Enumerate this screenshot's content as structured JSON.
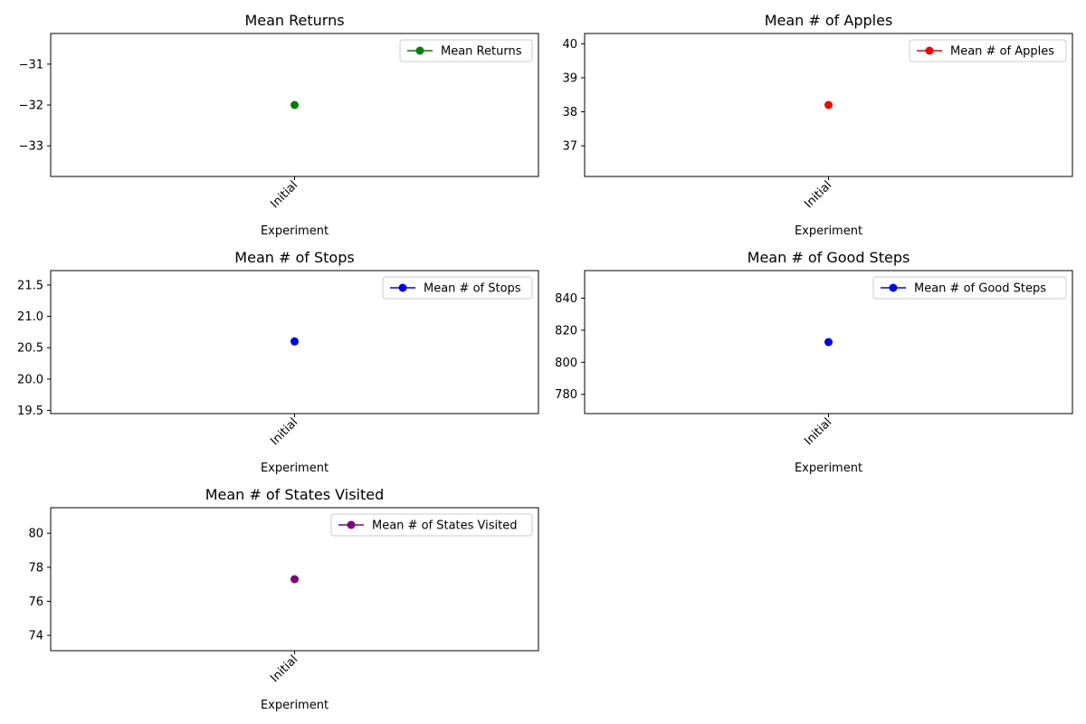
{
  "chart_data": [
    {
      "type": "line",
      "title": "Mean Returns",
      "xlabel": "Experiment",
      "ylabel": "",
      "categories": [
        "Initial"
      ],
      "series": [
        {
          "name": "Mean Returns",
          "values": [
            -32.0
          ],
          "color": "#008000"
        }
      ],
      "ylim": [
        -33.75,
        -30.25
      ],
      "yticks": [
        -33,
        -32,
        -31
      ],
      "ytick_labels": [
        "−33",
        "−32",
        "−31"
      ],
      "legend": "top-right"
    },
    {
      "type": "line",
      "title": "Mean # of Apples",
      "xlabel": "Experiment",
      "ylabel": "",
      "categories": [
        "Initial"
      ],
      "series": [
        {
          "name": "Mean # of Apples",
          "values": [
            38.2
          ],
          "color": "#ff0000"
        }
      ],
      "ylim": [
        36.1,
        40.3
      ],
      "yticks": [
        37,
        38,
        39,
        40
      ],
      "ytick_labels": [
        "37",
        "38",
        "39",
        "40"
      ],
      "legend": "top-right"
    },
    {
      "type": "line",
      "title": "Mean # of Stops",
      "xlabel": "Experiment",
      "ylabel": "",
      "categories": [
        "Initial"
      ],
      "series": [
        {
          "name": "Mean # of Stops",
          "values": [
            20.6
          ],
          "color": "#0000ff"
        }
      ],
      "ylim": [
        19.45,
        21.73
      ],
      "yticks": [
        19.5,
        20.0,
        20.5,
        21.0,
        21.5
      ],
      "ytick_labels": [
        "19.5",
        "20.0",
        "20.5",
        "21.0",
        "21.5"
      ],
      "legend": "top-right"
    },
    {
      "type": "line",
      "title": "Mean # of Good Steps",
      "xlabel": "Experiment",
      "ylabel": "",
      "categories": [
        "Initial"
      ],
      "series": [
        {
          "name": "Mean # of Good Steps",
          "values": [
            812.6
          ],
          "color": "#0000ff"
        }
      ],
      "ylim": [
        768.0,
        857.2
      ],
      "yticks": [
        780,
        800,
        820,
        840
      ],
      "ytick_labels": [
        "780",
        "800",
        "820",
        "840"
      ],
      "legend": "top-right"
    },
    {
      "type": "line",
      "title": "Mean # of States Visited",
      "xlabel": "Experiment",
      "ylabel": "",
      "categories": [
        "Initial"
      ],
      "series": [
        {
          "name": "Mean # of States Visited",
          "values": [
            77.3
          ],
          "color": "#800080"
        }
      ],
      "ylim": [
        73.1,
        81.5
      ],
      "yticks": [
        74,
        76,
        78,
        80
      ],
      "ytick_labels": [
        "74",
        "76",
        "78",
        "80"
      ],
      "legend": "top-right"
    }
  ]
}
